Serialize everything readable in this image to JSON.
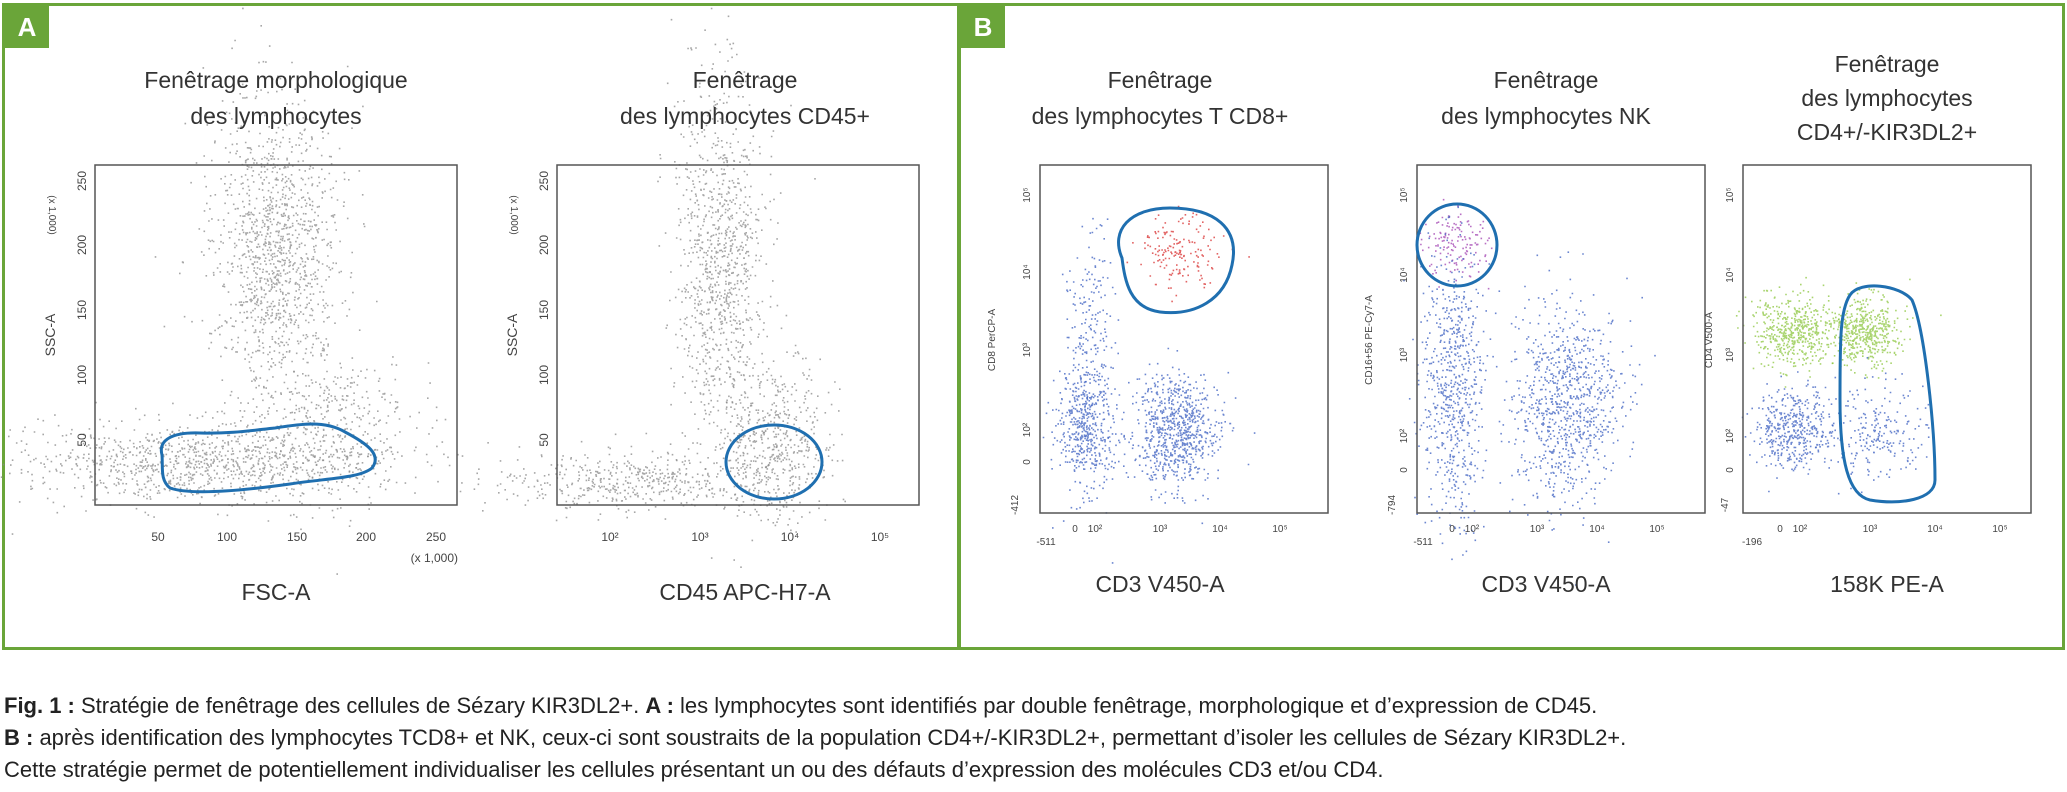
{
  "panels": {
    "a": {
      "tag": "A"
    },
    "b": {
      "tag": "B"
    }
  },
  "colors": {
    "frame": "#6aa539",
    "gray_events": "#8a8a8a",
    "blue_events": "#3b5fc0",
    "red_events": "#d83030",
    "purple_events": "#a040b0",
    "green_events": "#8cc63f",
    "gate": "#1f6fb0"
  },
  "plots": [
    {
      "title_lines": [
        "Fenêtrage morphologique",
        "des lymphocytes"
      ],
      "x_title": "FSC-A",
      "y_title": "SSC-A",
      "scale_x_label": "(x 1,000)",
      "scale_y_label": "(x 1,000)",
      "x_ticks": [
        "50",
        "100",
        "150",
        "200",
        "250"
      ],
      "y_ticks": [
        "50",
        "100",
        "150",
        "200",
        "250"
      ]
    },
    {
      "title_lines": [
        "Fenêtrage",
        "des lymphocytes CD45+"
      ],
      "x_title": "CD45 APC-H7-A",
      "y_title": "SSC-A",
      "scale_y_label": "(x 1,000)",
      "x_ticks": [
        "10²",
        "10³",
        "10⁴",
        "10⁵"
      ],
      "y_ticks": [
        "50",
        "100",
        "150",
        "200",
        "250"
      ]
    },
    {
      "title_lines": [
        "Fenêtrage",
        "des lymphocytes T CD8+"
      ],
      "x_title": "CD3 V450-A",
      "y_title": "CD8 PerCP-A",
      "x_ticks": [
        "-511",
        "0",
        "10²",
        "10³",
        "10⁴",
        "10⁵"
      ],
      "y_ticks": [
        "-412",
        "0",
        "10²",
        "10³",
        "10⁴",
        "10⁵"
      ]
    },
    {
      "title_lines": [
        "Fenêtrage",
        "des lymphocytes NK"
      ],
      "x_title": "CD3 V450-A",
      "y_title": "CD16+56 PE-Cy7-A",
      "x_ticks": [
        "-511",
        "0",
        "10²",
        "10³",
        "10⁴",
        "10⁵"
      ],
      "y_ticks": [
        "-794",
        "0",
        "10²",
        "10³",
        "10⁴",
        "10⁵"
      ]
    },
    {
      "title_lines": [
        "Fenêtrage",
        "des lymphocytes",
        "CD4+/-KIR3DL2+"
      ],
      "x_title": "158K PE-A",
      "y_title": "CD4 V500-A",
      "x_ticks": [
        "-196",
        "0",
        "10²",
        "10³",
        "10⁴",
        "10⁵"
      ],
      "y_ticks": [
        "-47",
        "0",
        "10²",
        "10³",
        "10⁴",
        "10⁵"
      ]
    }
  ],
  "caption": {
    "fig_label": "Fig. 1 :",
    "line1": " Stratégie de fenêtrage des cellules de Sézary KIR3DL2+. ",
    "a_label": "A :",
    "line1b": " les lymphocytes sont identifiés par double fenêtrage, morphologique et d’expression de CD45.",
    "b_label": "B :",
    "line2": " après identification des lymphocytes TCD8+ et NK, ceux-ci sont soustraits de la population CD4+/-KIR3DL2+, permettant d’isoler les cellules de Sézary KIR3DL2+.",
    "line3": "Cette stratégie permet de potentiellement individualiser les cellules présentant un ou des défauts d’expression des molécules CD3 et/ou CD4."
  },
  "chart_data": [
    {
      "type": "scatter",
      "title": "Fenêtrage morphologique des lymphocytes",
      "xlabel": "FSC-A (x 1,000)",
      "ylabel": "SSC-A (x 1,000)",
      "xlim": [
        0,
        262
      ],
      "ylim": [
        0,
        262
      ],
      "populations": [
        {
          "name": "",
          "color": "#8a8a8a",
          "center": [
            150,
            200
          ],
          "spread": [
            30,
            45
          ],
          "count": 2200
        },
        {
          "name": "",
          "color": "#8a8a8a",
          "center": [
            110,
            25
          ],
          "spread": [
            70,
            10
          ],
          "count": 1800
        },
        {
          "name": "",
          "color": "#8a8a8a",
          "center": [
            210,
            55
          ],
          "spread": [
            35,
            25
          ],
          "count": 800
        }
      ],
      "gates": [
        {
          "shape": "polygon",
          "points": [
            [
              45,
              30
            ],
            [
              55,
              40
            ],
            [
              95,
              45
            ],
            [
              130,
              48
            ],
            [
              160,
              52
            ],
            [
              185,
              45
            ],
            [
              200,
              35
            ],
            [
              180,
              20
            ],
            [
              120,
              13
            ],
            [
              70,
              13
            ],
            [
              48,
              20
            ]
          ]
        }
      ]
    },
    {
      "type": "scatter",
      "title": "Fenêtrage des lymphocytes CD45+",
      "xlabel": "CD45 APC-H7-A",
      "ylabel": "SSC-A (x 1,000)",
      "xscale": "log",
      "xlim": [
        20,
        200000
      ],
      "ylim": [
        0,
        262
      ],
      "populations": [
        {
          "name": "",
          "color": "#8a8a8a",
          "center": [
            1500,
            190
          ],
          "spread": [
            0.25,
            45
          ],
          "count": 1800
        },
        {
          "name": "",
          "color": "#8a8a8a",
          "center": [
            5000,
            40
          ],
          "spread": [
            0.2,
            15
          ],
          "count": 900
        },
        {
          "name": "",
          "color": "#8a8a8a",
          "center": [
            200,
            15
          ],
          "spread": [
            0.9,
            8
          ],
          "count": 900
        }
      ],
      "gates": [
        {
          "shape": "ellipse",
          "center": [
            5500,
            40
          ],
          "radius_log_x": 0.45,
          "radius_y": 25
        }
      ]
    },
    {
      "type": "scatter",
      "title": "Fenêtrage des lymphocytes T CD8+",
      "xlabel": "CD3 V450-A",
      "ylabel": "CD8 PerCP-A",
      "xscale": "biexponential",
      "yscale": "biexponential",
      "populations": [
        {
          "name": "",
          "color": "#d83030",
          "center": [
            2000,
            10000
          ],
          "count": 300
        },
        {
          "name": "",
          "color": "#3b5fc0",
          "center": [
            1800,
            60
          ],
          "count": 1400
        },
        {
          "name": "",
          "color": "#3b5fc0",
          "center": [
            10,
            60
          ],
          "count": 900
        },
        {
          "name": "",
          "color": "#3b5fc0",
          "center": [
            20,
            800
          ],
          "count": 300
        }
      ],
      "gates": [
        {
          "shape": "ellipse",
          "center": [
            2000,
            10000
          ]
        }
      ]
    },
    {
      "type": "scatter",
      "title": "Fenêtrage des lymphocytes NK",
      "xlabel": "CD3 V450-A",
      "ylabel": "CD16+56 PE-Cy7-A",
      "xscale": "biexponential",
      "yscale": "biexponential",
      "populations": [
        {
          "name": "",
          "color": "#a040b0",
          "center": [
            30,
            20000
          ],
          "count": 250
        },
        {
          "name": "",
          "color": "#3b5fc0",
          "center": [
            40,
            1500
          ],
          "count": 1200
        },
        {
          "name": "",
          "color": "#3b5fc0",
          "center": [
            2500,
            200
          ],
          "count": 1600
        }
      ],
      "gates": [
        {
          "shape": "ellipse",
          "center": [
            30,
            20000
          ]
        }
      ]
    },
    {
      "type": "scatter",
      "title": "Fenêtrage des lymphocytes CD4+/-KIR3DL2+",
      "xlabel": "158K PE-A",
      "ylabel": "CD4 V500-A",
      "xscale": "biexponential",
      "yscale": "biexponential",
      "populations": [
        {
          "name": "",
          "color": "#8cc63f",
          "center": [
            30,
            2500
          ],
          "count": 900
        },
        {
          "name": "",
          "color": "#8cc63f",
          "center": [
            1200,
            2500
          ],
          "count": 900
        },
        {
          "name": "",
          "color": "#3b5fc0",
          "center": [
            30,
            30
          ],
          "count": 800
        },
        {
          "name": "",
          "color": "#3b5fc0",
          "center": [
            1200,
            30
          ],
          "count": 400
        }
      ],
      "gates": [
        {
          "shape": "rounded-rect",
          "x_range": [
            400,
            4000
          ],
          "y_range": [
            -47,
            8000
          ]
        }
      ]
    }
  ]
}
